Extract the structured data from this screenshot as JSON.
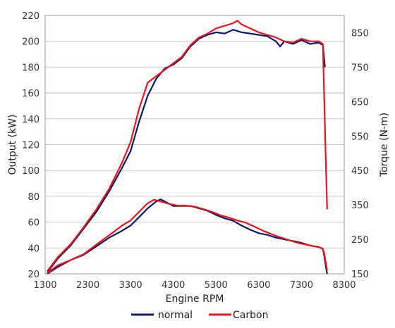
{
  "chart_data": {
    "type": "line",
    "xlabel": "Engine RPM",
    "ylabel_left": "Output (kW)",
    "ylabel_right": "Torque (N-m)",
    "xlim": [
      1300,
      8300
    ],
    "x_ticks": [
      1300,
      2300,
      3300,
      4300,
      5300,
      6300,
      7300,
      8300
    ],
    "ylim_left": [
      20,
      220
    ],
    "y_ticks_left": [
      20,
      40,
      60,
      80,
      100,
      120,
      140,
      160,
      180,
      200,
      220
    ],
    "ylim_right": [
      150,
      900
    ],
    "y_ticks_right": [
      150,
      250,
      350,
      450,
      550,
      650,
      750,
      850
    ],
    "grid": "horizontal",
    "legend": "bottom",
    "series": [
      {
        "name": "normal",
        "color": "#0a1a6b",
        "axis": "left",
        "x": [
          1350,
          1600,
          1900,
          2200,
          2500,
          2800,
          3100,
          3300,
          3500,
          3700,
          3900,
          4100,
          4300,
          4500,
          4700,
          4900,
          5100,
          5300,
          5500,
          5700,
          5900,
          6100,
          6300,
          6500,
          6700,
          6800,
          6900,
          7100,
          7300,
          7500,
          7700,
          7800,
          7850
        ],
        "y": [
          21,
          32,
          42,
          55,
          68,
          84,
          102,
          115,
          138,
          158,
          171,
          179,
          182,
          187,
          196,
          202,
          205,
          207,
          206,
          209,
          207,
          206,
          205,
          204,
          200,
          196,
          200,
          198,
          201,
          198,
          199,
          197,
          180
        ]
      },
      {
        "name": "Carbon",
        "color": "#e8151b",
        "axis": "left",
        "x": [
          1350,
          1600,
          1900,
          2200,
          2500,
          2800,
          3100,
          3300,
          3500,
          3700,
          3900,
          4100,
          4300,
          4500,
          4700,
          4900,
          5100,
          5300,
          5500,
          5700,
          5800,
          5900,
          6100,
          6300,
          6500,
          6700,
          6900,
          7100,
          7300,
          7500,
          7700,
          7800,
          7830,
          7860,
          7900
        ],
        "y": [
          22,
          33,
          43,
          56,
          70,
          86,
          106,
          122,
          148,
          168,
          173,
          178,
          183,
          188,
          197,
          203,
          206,
          210,
          212,
          214,
          216,
          213,
          210,
          207,
          205,
          203,
          200,
          199,
          202,
          200,
          200,
          198,
          160,
          120,
          70
        ]
      },
      {
        "name": "normal",
        "color": "#0a1a6b",
        "axis": "right",
        "x": [
          1350,
          1600,
          1900,
          2200,
          2500,
          2800,
          3100,
          3300,
          3500,
          3700,
          3900,
          4000,
          4100,
          4300,
          4500,
          4700,
          4900,
          5100,
          5300,
          5500,
          5700,
          5900,
          6100,
          6300,
          6500,
          6700,
          6900,
          7100,
          7300,
          7500,
          7700,
          7800,
          7830,
          7860,
          7900
        ],
        "y": [
          150,
          170,
          190,
          205,
          230,
          255,
          275,
          290,
          315,
          340,
          360,
          366,
          360,
          347,
          347,
          347,
          340,
          333,
          321,
          311,
          304,
          290,
          278,
          268,
          263,
          255,
          250,
          245,
          240,
          232,
          228,
          222,
          205,
          180,
          150
        ]
      },
      {
        "name": "Carbon",
        "color": "#e8151b",
        "axis": "right",
        "x": [
          1350,
          1600,
          1900,
          2200,
          2500,
          2800,
          3100,
          3300,
          3500,
          3700,
          3850,
          4000,
          4200,
          4400,
          4600,
          4800,
          5000,
          5200,
          5400,
          5600,
          5800,
          6000,
          6200,
          6400,
          6600,
          6800,
          7000,
          7200,
          7400,
          7600,
          7750,
          7800,
          7830,
          7860,
          7900
        ],
        "y": [
          152,
          175,
          190,
          207,
          235,
          262,
          290,
          305,
          330,
          355,
          365,
          360,
          353,
          348,
          348,
          345,
          338,
          330,
          320,
          313,
          305,
          298,
          287,
          275,
          265,
          256,
          248,
          240,
          235,
          230,
          226,
          222,
          210,
          190,
          160
        ]
      }
    ]
  }
}
